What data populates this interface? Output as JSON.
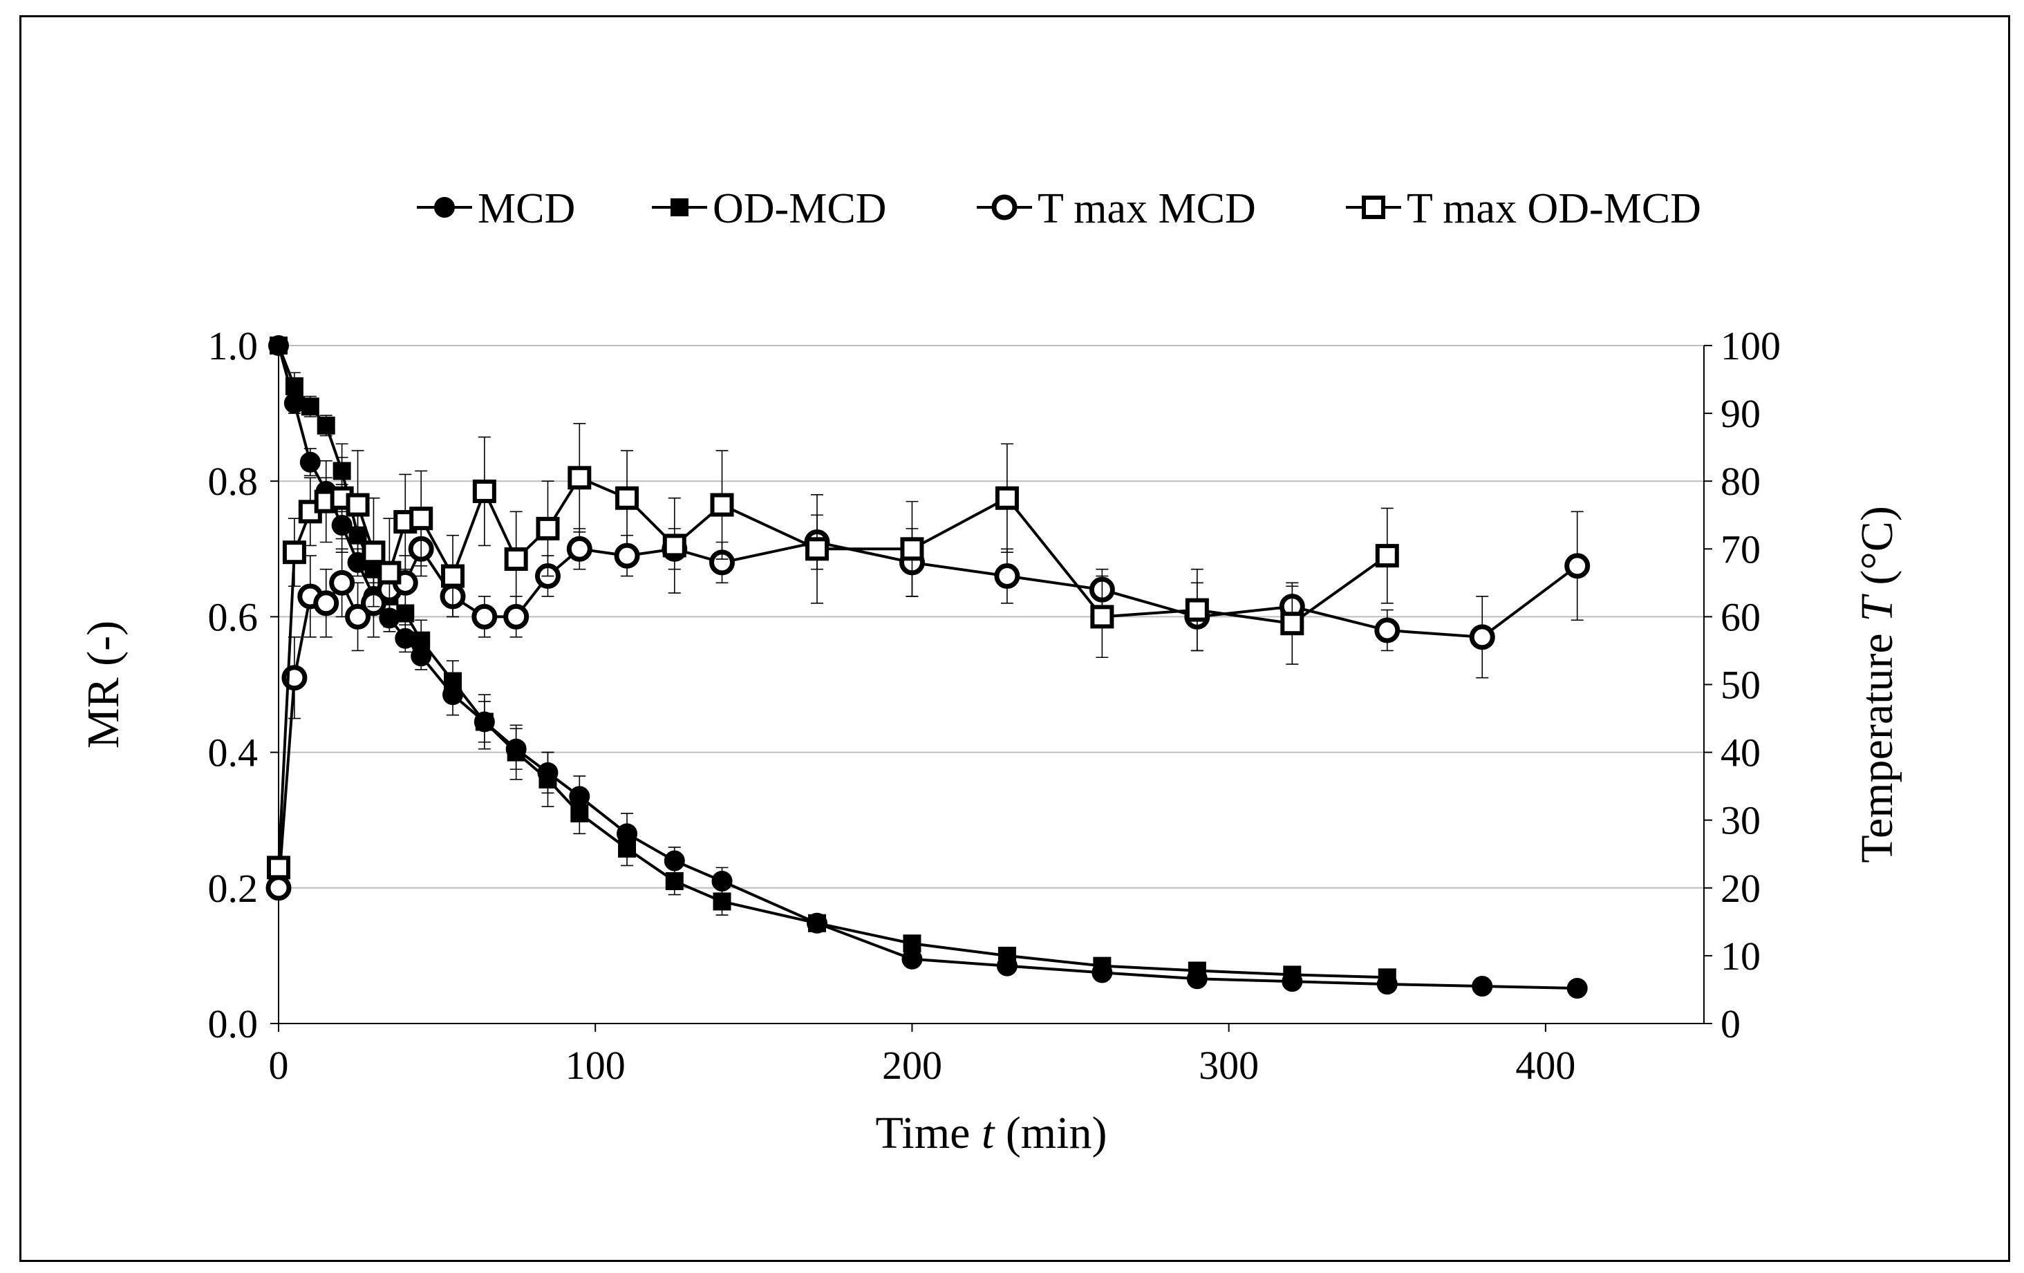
{
  "chart_data": {
    "type": "line",
    "legend_position": "top",
    "grid": true,
    "x_axis": {
      "label_prefix": "Time ",
      "label_var": "t",
      "label_suffix": " (min)",
      "range": [
        0,
        450
      ],
      "ticks": [
        "0",
        "100",
        "200",
        "300",
        "400"
      ]
    },
    "y_left": {
      "label": "MR (-)",
      "range": [
        0,
        1
      ],
      "ticks": [
        "0.0",
        "0.2",
        "0.4",
        "0.6",
        "0.8",
        "1.0"
      ]
    },
    "y_right": {
      "label_prefix": "Temperature ",
      "label_var": "T",
      "label_suffix": " (°C)",
      "range": [
        0,
        100
      ],
      "ticks": [
        "0",
        "10",
        "20",
        "30",
        "40",
        "50",
        "60",
        "70",
        "80",
        "90",
        "100"
      ]
    },
    "series": [
      {
        "name": "MCD",
        "axis": "left",
        "marker": "filled-circle",
        "x": [
          0,
          5,
          10,
          15,
          20,
          25,
          30,
          35,
          40,
          45,
          55,
          65,
          75,
          85,
          95,
          110,
          125,
          140,
          170,
          200,
          230,
          260,
          290,
          320,
          350,
          380,
          410
        ],
        "y": [
          1.0,
          0.915,
          0.828,
          0.785,
          0.735,
          0.68,
          0.63,
          0.598,
          0.568,
          0.542,
          0.485,
          0.445,
          0.405,
          0.37,
          0.335,
          0.28,
          0.24,
          0.21,
          0.148,
          0.095,
          0.085,
          0.075,
          0.066,
          0.062,
          0.058,
          0.055,
          0.052
        ],
        "err": [
          0,
          0.015,
          0.02,
          0.02,
          0.02,
          0.02,
          0.02,
          0.02,
          0.02,
          0.02,
          0.03,
          0.03,
          0.03,
          0.03,
          0.03,
          0.03,
          0.02,
          0.02,
          0.01,
          0.01,
          0.01,
          0.01,
          0.005,
          0.005,
          0.005,
          0.005,
          0.005
        ]
      },
      {
        "name": "OD-MCD",
        "axis": "left",
        "marker": "filled-square",
        "x": [
          0,
          5,
          10,
          15,
          20,
          25,
          30,
          35,
          40,
          45,
          55,
          65,
          75,
          85,
          95,
          110,
          125,
          140,
          170,
          200,
          230,
          260,
          290,
          320,
          350
        ],
        "y": [
          1.0,
          0.94,
          0.91,
          0.882,
          0.815,
          0.72,
          0.67,
          0.63,
          0.605,
          0.565,
          0.505,
          0.445,
          0.4,
          0.36,
          0.31,
          0.258,
          0.21,
          0.18,
          0.148,
          0.118,
          0.1,
          0.085,
          0.078,
          0.072,
          0.068
        ],
        "err": [
          0,
          0.02,
          0.015,
          0.015,
          0.02,
          0.03,
          0.03,
          0.03,
          0.03,
          0.03,
          0.03,
          0.04,
          0.04,
          0.04,
          0.03,
          0.025,
          0.02,
          0.02,
          0.01,
          0.01,
          0.01,
          0.008,
          0.006,
          0.005,
          0.005
        ]
      },
      {
        "name": "T max MCD",
        "axis": "right",
        "marker": "open-circle",
        "x": [
          0,
          5,
          10,
          15,
          20,
          25,
          30,
          35,
          40,
          45,
          55,
          65,
          75,
          85,
          95,
          110,
          125,
          140,
          170,
          200,
          230,
          260,
          290,
          320,
          350,
          380,
          410
        ],
        "y": [
          20,
          51,
          63,
          62,
          65,
          60,
          62,
          64,
          65,
          70,
          63,
          60,
          60,
          66,
          70,
          69,
          70,
          68,
          71,
          68,
          66,
          64,
          60,
          61.5,
          58,
          57,
          67.5
        ],
        "err": [
          0,
          6,
          6,
          5,
          5,
          5,
          5,
          4,
          4,
          4,
          3,
          3,
          3,
          3,
          3,
          3,
          3,
          3,
          4,
          5,
          4,
          3,
          5,
          3,
          3,
          6,
          8
        ]
      },
      {
        "name": "T max OD-MCD",
        "axis": "right",
        "marker": "open-square",
        "x": [
          0,
          5,
          10,
          15,
          20,
          25,
          30,
          35,
          40,
          45,
          55,
          65,
          75,
          85,
          95,
          110,
          125,
          140,
          170,
          200,
          230,
          260,
          290,
          320,
          350
        ],
        "y": [
          23,
          69.5,
          75.5,
          77,
          77.5,
          76.5,
          69.5,
          66.5,
          74,
          74.5,
          66,
          78.5,
          68.5,
          73,
          80.5,
          77.5,
          70.5,
          76.5,
          70,
          70,
          77.5,
          60,
          61,
          59,
          69
        ],
        "err": [
          0,
          5,
          5,
          6,
          8,
          8,
          8,
          8,
          7,
          7,
          6,
          8,
          7,
          7,
          8,
          7,
          7,
          8,
          8,
          7,
          8,
          6,
          6,
          6,
          7
        ]
      }
    ]
  }
}
